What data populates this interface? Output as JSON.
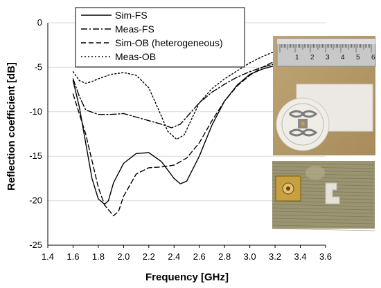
{
  "chart_data": {
    "type": "line",
    "xlabel": "Frequency [GHz]",
    "ylabel": "Reflection coefficient [dB]",
    "xlim": [
      1.4,
      3.6
    ],
    "ylim": [
      -25,
      0
    ],
    "xticks": [
      "1.4",
      "1.6",
      "1.8",
      "2.0",
      "2.2",
      "2.4",
      "2.6",
      "2.8",
      "3.0",
      "3.2",
      "3.4",
      "3.6"
    ],
    "yticks": [
      "0",
      "-5",
      "-10",
      "-15",
      "-20",
      "-25"
    ],
    "grid": "horizontal",
    "legend_position": "top",
    "series": [
      {
        "name": "Sim-FS",
        "style": "solid",
        "x": [
          1.6,
          1.65,
          1.7,
          1.75,
          1.8,
          1.85,
          1.88,
          1.92,
          2.0,
          2.1,
          2.2,
          2.3,
          2.4,
          2.45,
          2.5,
          2.6,
          2.7,
          2.8,
          2.9,
          3.0,
          3.1,
          3.2
        ],
        "y": [
          -6.5,
          -9.5,
          -13.5,
          -17.5,
          -19.8,
          -20.4,
          -20.0,
          -18.0,
          -15.8,
          -14.7,
          -14.6,
          -15.6,
          -17.5,
          -18.1,
          -17.8,
          -15.0,
          -11.5,
          -8.8,
          -7.0,
          -5.8,
          -5.2,
          -4.8
        ]
      },
      {
        "name": "Meas-FS",
        "style": "dashdot",
        "x": [
          1.6,
          1.65,
          1.7,
          1.8,
          1.9,
          2.0,
          2.1,
          2.2,
          2.3,
          2.38,
          2.45,
          2.5,
          2.6,
          2.7,
          2.8,
          2.9,
          3.0,
          3.1,
          3.2
        ],
        "y": [
          -6.3,
          -8.3,
          -9.8,
          -10.3,
          -10.3,
          -10.2,
          -10.6,
          -11.0,
          -11.4,
          -11.8,
          -11.4,
          -10.6,
          -9.0,
          -7.8,
          -6.9,
          -6.1,
          -5.5,
          -5.0,
          -4.6
        ]
      },
      {
        "name": "Sim-OB (heterogeneous)",
        "style": "dashed",
        "x": [
          1.6,
          1.7,
          1.8,
          1.85,
          1.92,
          1.96,
          2.0,
          2.1,
          2.2,
          2.3,
          2.4,
          2.5,
          2.6,
          2.7,
          2.8,
          2.9,
          3.0,
          3.1,
          3.2
        ],
        "y": [
          -8.0,
          -12.5,
          -18.5,
          -20.5,
          -21.7,
          -21.2,
          -19.5,
          -17.0,
          -16.3,
          -16.2,
          -16.0,
          -15.2,
          -13.5,
          -11.0,
          -8.8,
          -7.1,
          -5.9,
          -5.0,
          -4.3
        ]
      },
      {
        "name": "Meas-OB",
        "style": "dotted",
        "x": [
          1.6,
          1.65,
          1.7,
          1.75,
          1.8,
          1.9,
          2.0,
          2.1,
          2.2,
          2.3,
          2.35,
          2.42,
          2.48,
          2.55,
          2.6,
          2.7,
          2.8,
          2.9,
          3.0,
          3.1,
          3.2
        ],
        "y": [
          -5.5,
          -6.5,
          -6.8,
          -6.6,
          -6.3,
          -5.8,
          -5.6,
          -5.9,
          -7.3,
          -10.5,
          -12.2,
          -13.1,
          -12.6,
          -10.5,
          -9.0,
          -7.4,
          -6.3,
          -5.4,
          -4.5,
          -3.8,
          -3.2
        ]
      }
    ]
  },
  "photos": {
    "top": {
      "ruler_numbers": [
        "1",
        "2",
        "3",
        "4",
        "5",
        "6"
      ]
    }
  }
}
